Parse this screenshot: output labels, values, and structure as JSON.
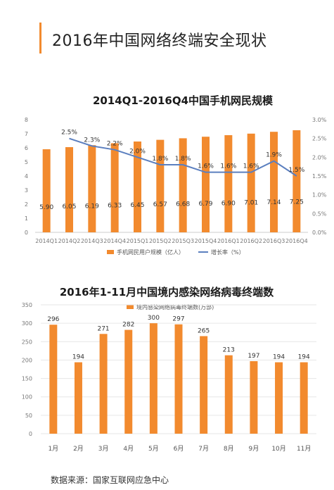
{
  "page": {
    "title": "2016年中国网络终端安全现状",
    "source": "数据来源：国家互联网应急中心"
  },
  "colors": {
    "bar": "#f28a2e",
    "line": "#5b7fbf",
    "accent": "#f28a2e"
  },
  "chart_data": [
    {
      "type": "bar",
      "title": "2014Q1-2016Q4中国手机网民规模",
      "categories": [
        "2014Q1",
        "2014Q2",
        "2014Q3",
        "2014Q4",
        "2015Q1",
        "2015Q2",
        "2015Q3",
        "2015Q4",
        "2016Q1",
        "2016Q2",
        "2016Q3",
        "2016Q4"
      ],
      "series": [
        {
          "name": "手机网民用户规模（亿人）",
          "type": "bar",
          "axis": "left",
          "values": [
            5.9,
            6.05,
            6.19,
            6.33,
            6.45,
            6.57,
            6.68,
            6.79,
            6.9,
            7.01,
            7.14,
            7.25
          ],
          "labels": [
            "5.90",
            "6.05",
            "6.19",
            "6.33",
            "6.45",
            "6.57",
            "6.68",
            "6.79",
            "6.90",
            "7.01",
            "7.14",
            "7.25"
          ]
        },
        {
          "name": "增长率（%）",
          "type": "line",
          "axis": "right",
          "values": [
            null,
            2.5,
            2.3,
            2.2,
            2.0,
            1.8,
            1.8,
            1.6,
            1.6,
            1.6,
            1.9,
            1.5
          ],
          "labels": [
            "",
            "2.5%",
            "2.3%",
            "2.2%",
            "2.0%",
            "1.8%",
            "1.8%",
            "1.6%",
            "1.6%",
            "1.6%",
            "1.9%",
            "1.5%"
          ]
        }
      ],
      "ylim_left": [
        0,
        8
      ],
      "yticks_left": [
        "0",
        "1",
        "2",
        "3",
        "4",
        "5",
        "6",
        "7",
        "8"
      ],
      "ylim_right": [
        0,
        3.0
      ],
      "yticks_right": [
        "0.0%",
        "0.5%",
        "1.0%",
        "1.5%",
        "2.0%",
        "2.5%",
        "3.0%"
      ],
      "legend_position": "bottom"
    },
    {
      "type": "bar",
      "title": "2016年1-11月中国境内感染网络病毒终端数",
      "categories": [
        "1月",
        "2月",
        "3月",
        "4月",
        "5月",
        "6月",
        "7月",
        "8月",
        "9月",
        "10月",
        "11月"
      ],
      "series": [
        {
          "name": "境内感染网络病毒终端数(万部)",
          "values": [
            296,
            194,
            271,
            282,
            300,
            297,
            265,
            213,
            197,
            194,
            194
          ]
        }
      ],
      "ylim": [
        0,
        350
      ],
      "yticks": [
        "0",
        "50",
        "100",
        "150",
        "200",
        "250",
        "300",
        "350"
      ],
      "grid": true,
      "legend_position": "top"
    }
  ]
}
